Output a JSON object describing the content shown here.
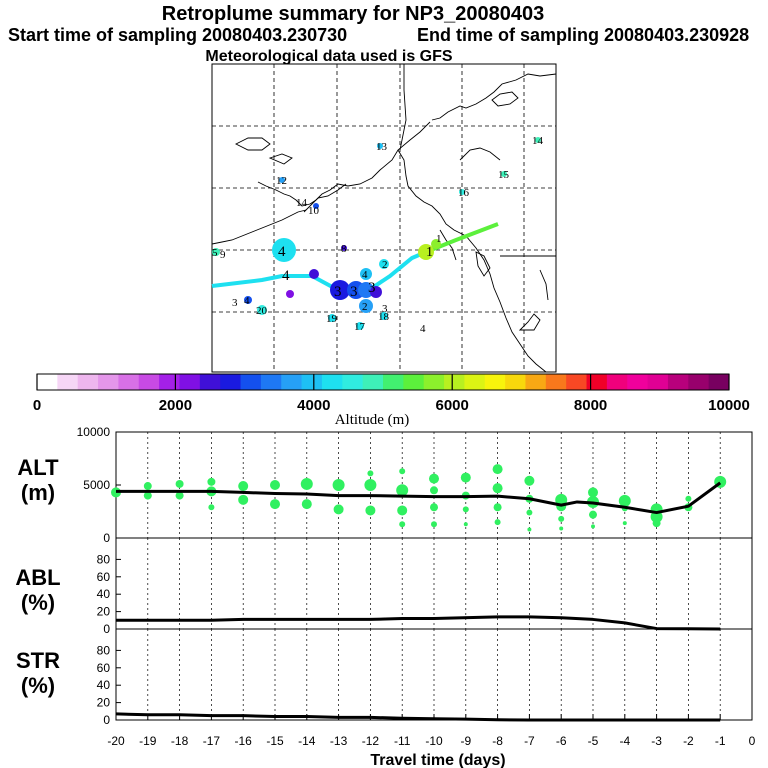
{
  "header": {
    "title": "Retroplume summary for NP3_20080403",
    "start": "Start time of sampling 20080403.230730",
    "end": "End time of sampling 20080403.230928",
    "met": "Meteorological data used is GFS"
  },
  "colorbar": {
    "labels": [
      "0",
      "2000",
      "4000",
      "6000",
      "8000",
      "10000"
    ],
    "label": "Altitude (m)",
    "colors": [
      "#ffffff",
      "#f6d6f6",
      "#eeb6ee",
      "#e496ea",
      "#d870e6",
      "#c84ae4",
      "#a420e8",
      "#8010e4",
      "#4010d8",
      "#1a1ae0",
      "#1450ee",
      "#1e78f4",
      "#26a0f6",
      "#1ec0f4",
      "#1ee0f0",
      "#30ece0",
      "#3ef0b8",
      "#42f070",
      "#5cf03c",
      "#8cf02c",
      "#b8f020",
      "#dcf414",
      "#f8f40c",
      "#f8d80c",
      "#f8a814",
      "#f8781c",
      "#f84824",
      "#f00028",
      "#f0007c",
      "#f0009c",
      "#e00094",
      "#b8007c",
      "#98006c",
      "#780060"
    ]
  },
  "map": {
    "markers": [
      "1",
      "2",
      "3",
      "4",
      "5",
      "6",
      "7",
      "8",
      "9",
      "10",
      "11",
      "12",
      "13",
      "14",
      "15",
      "16",
      "17",
      "18",
      "19",
      "20"
    ],
    "labels": [
      {
        "t": "13",
        "c": "#000"
      },
      {
        "t": "12",
        "c": "#000"
      },
      {
        "t": "14",
        "c": "#000"
      },
      {
        "t": "10",
        "c": "#000"
      },
      {
        "t": "16",
        "c": "#000"
      },
      {
        "t": "15",
        "c": "#000"
      },
      {
        "t": "14",
        "c": "#000"
      },
      {
        "t": "5",
        "c": "#000"
      },
      {
        "t": "9",
        "c": "#000"
      },
      {
        "t": "4",
        "c": "#000"
      },
      {
        "t": "4",
        "c": "#000"
      },
      {
        "t": "8",
        "c": "#000"
      },
      {
        "t": "1",
        "c": "#000"
      },
      {
        "t": "1",
        "c": "#000"
      },
      {
        "t": "2",
        "c": "#000"
      },
      {
        "t": "4",
        "c": "#000"
      },
      {
        "t": "3",
        "c": "#000"
      },
      {
        "t": "3",
        "c": "#000"
      },
      {
        "t": "3",
        "c": "#000"
      },
      {
        "t": "2",
        "c": "#000"
      },
      {
        "t": "3",
        "c": "#000"
      },
      {
        "t": "20",
        "c": "#000"
      },
      {
        "t": "19",
        "c": "#000"
      },
      {
        "t": "17",
        "c": "#000"
      },
      {
        "t": "18",
        "c": "#000"
      },
      {
        "t": "4",
        "c": "#000"
      },
      {
        "t": "3",
        "c": "#000"
      },
      {
        "t": "4",
        "c": "#000"
      }
    ]
  },
  "panels": {
    "alt_label": [
      "ALT",
      "(m)"
    ],
    "abl_label": [
      "ABL",
      "(%)"
    ],
    "str_label": [
      "STR",
      "(%)"
    ],
    "xlabel": "Travel time (days)"
  },
  "chart_data": [
    {
      "type": "line",
      "name": "ALT",
      "title": "ALT (m)",
      "ylim": [
        0,
        10000
      ],
      "yticks": [
        "10000",
        "5000",
        "0"
      ],
      "x": [
        -20,
        -19,
        -18,
        -17,
        -16,
        -15,
        -14,
        -13,
        -12,
        -11,
        -10,
        -9,
        -8,
        -7,
        -6,
        -5.5,
        -5,
        -4,
        -3,
        -2,
        -1
      ],
      "values": [
        4400,
        4400,
        4400,
        4400,
        4300,
        4200,
        4150,
        4000,
        4000,
        3950,
        3900,
        3900,
        3950,
        3700,
        3100,
        3400,
        3300,
        2900,
        2400,
        3000,
        5200
      ],
      "scatter": [
        {
          "x": -20,
          "y": 4300,
          "r": 5
        },
        {
          "x": -19,
          "y": 4900,
          "r": 4
        },
        {
          "x": -19,
          "y": 4000,
          "r": 4
        },
        {
          "x": -18,
          "y": 5100,
          "r": 4
        },
        {
          "x": -18,
          "y": 4000,
          "r": 4
        },
        {
          "x": -17,
          "y": 5300,
          "r": 4
        },
        {
          "x": -17,
          "y": 4400,
          "r": 5
        },
        {
          "x": -17,
          "y": 2900,
          "r": 3
        },
        {
          "x": -16,
          "y": 4900,
          "r": 5
        },
        {
          "x": -16,
          "y": 3600,
          "r": 5
        },
        {
          "x": -15,
          "y": 5000,
          "r": 5
        },
        {
          "x": -15,
          "y": 3200,
          "r": 5
        },
        {
          "x": -14,
          "y": 5100,
          "r": 6
        },
        {
          "x": -14,
          "y": 3200,
          "r": 5
        },
        {
          "x": -13,
          "y": 5000,
          "r": 6
        },
        {
          "x": -13,
          "y": 2700,
          "r": 5
        },
        {
          "x": -12,
          "y": 6100,
          "r": 3
        },
        {
          "x": -12,
          "y": 5000,
          "r": 6
        },
        {
          "x": -12,
          "y": 2600,
          "r": 5
        },
        {
          "x": -11,
          "y": 6300,
          "r": 3
        },
        {
          "x": -11,
          "y": 4500,
          "r": 6
        },
        {
          "x": -11,
          "y": 2600,
          "r": 5
        },
        {
          "x": -11,
          "y": 1300,
          "r": 3
        },
        {
          "x": -10,
          "y": 5600,
          "r": 5
        },
        {
          "x": -10,
          "y": 4500,
          "r": 4
        },
        {
          "x": -10,
          "y": 2900,
          "r": 4
        },
        {
          "x": -10,
          "y": 1300,
          "r": 3
        },
        {
          "x": -9,
          "y": 5700,
          "r": 5
        },
        {
          "x": -9,
          "y": 4000,
          "r": 4
        },
        {
          "x": -9,
          "y": 2700,
          "r": 3
        },
        {
          "x": -9,
          "y": 1300,
          "r": 2
        },
        {
          "x": -8,
          "y": 6500,
          "r": 5
        },
        {
          "x": -8,
          "y": 4700,
          "r": 5
        },
        {
          "x": -8,
          "y": 2900,
          "r": 4
        },
        {
          "x": -8,
          "y": 1500,
          "r": 3
        },
        {
          "x": -7,
          "y": 5400,
          "r": 5
        },
        {
          "x": -7,
          "y": 3700,
          "r": 4
        },
        {
          "x": -7,
          "y": 2400,
          "r": 3
        },
        {
          "x": -7,
          "y": 800,
          "r": 2
        },
        {
          "x": -6,
          "y": 3600,
          "r": 6
        },
        {
          "x": -6,
          "y": 3000,
          "r": 5
        },
        {
          "x": -6,
          "y": 1800,
          "r": 3
        },
        {
          "x": -6,
          "y": 900,
          "r": 2
        },
        {
          "x": -5,
          "y": 4300,
          "r": 5
        },
        {
          "x": -5,
          "y": 3400,
          "r": 6
        },
        {
          "x": -5,
          "y": 2200,
          "r": 4
        },
        {
          "x": -5,
          "y": 1100,
          "r": 2
        },
        {
          "x": -4,
          "y": 3500,
          "r": 6
        },
        {
          "x": -4,
          "y": 2800,
          "r": 3
        },
        {
          "x": -4,
          "y": 1400,
          "r": 2
        },
        {
          "x": -3,
          "y": 2700,
          "r": 6
        },
        {
          "x": -3,
          "y": 2000,
          "r": 6
        },
        {
          "x": -3,
          "y": 1400,
          "r": 4
        },
        {
          "x": -2,
          "y": 3700,
          "r": 3
        },
        {
          "x": -2,
          "y": 2900,
          "r": 4
        },
        {
          "x": -1,
          "y": 5300,
          "r": 6
        }
      ]
    },
    {
      "type": "line",
      "name": "ABL",
      "title": "ABL (%)",
      "ylim": [
        0,
        100
      ],
      "yticks": [
        "80",
        "60",
        "40",
        "20",
        "0"
      ],
      "x": [
        -20,
        -18,
        -17,
        -16,
        -14,
        -12,
        -11,
        -10,
        -8,
        -7,
        -6,
        -5,
        -4,
        -3,
        -2,
        -1
      ],
      "values": [
        10,
        10,
        10,
        11,
        11,
        11,
        12,
        12,
        14,
        14,
        13,
        11,
        7,
        0.5,
        0.3,
        0
      ]
    },
    {
      "type": "line",
      "name": "STR",
      "title": "STR (%)",
      "ylim": [
        0,
        100
      ],
      "yticks": [
        "80",
        "60",
        "40",
        "20",
        "0"
      ],
      "x": [
        -20,
        -19,
        -18,
        -17,
        -16,
        -15,
        -14,
        -13,
        -12,
        -11,
        -10,
        -9,
        -8,
        -7,
        -6,
        -5,
        -4,
        -3,
        -2,
        -1
      ],
      "values": [
        7,
        6,
        6,
        5,
        5,
        4,
        4,
        3,
        3,
        2,
        1.5,
        1,
        0.3,
        0,
        0,
        0,
        0,
        0,
        0,
        0
      ]
    }
  ],
  "xaxis": {
    "ticks": [
      "-20",
      "-19",
      "-18",
      "-17",
      "-16",
      "-15",
      "-14",
      "-13",
      "-12",
      "-11",
      "-10",
      "-9",
      "-8",
      "-7",
      "-6",
      "-5",
      "-4",
      "-3",
      "-2",
      "-1",
      "0"
    ],
    "values": [
      -20,
      -19,
      -18,
      -17,
      -16,
      -15,
      -14,
      -13,
      -12,
      -11,
      -10,
      -9,
      -8,
      -7,
      -6,
      -5,
      -4,
      -3,
      -2,
      -1,
      0
    ]
  }
}
